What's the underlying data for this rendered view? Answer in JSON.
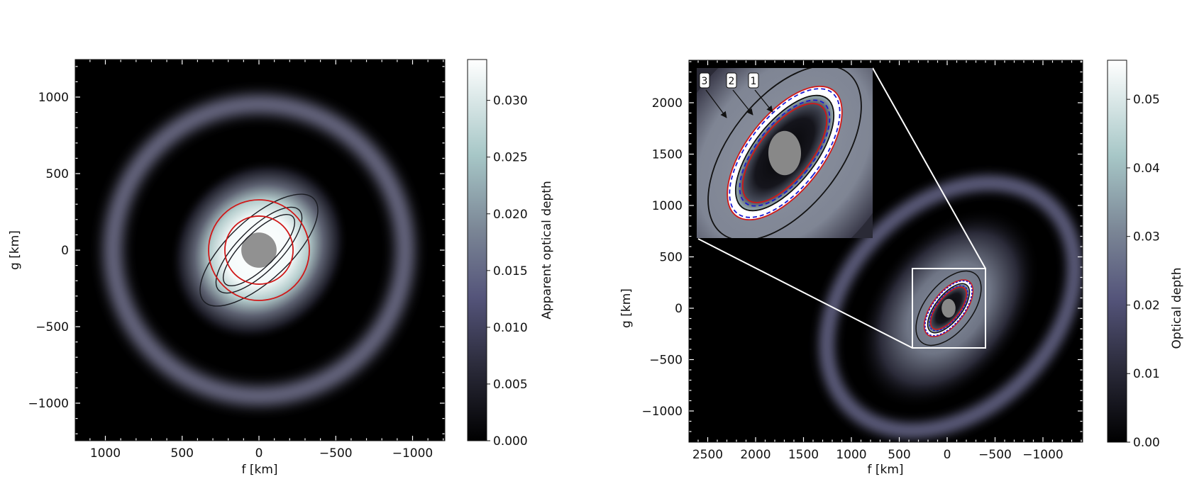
{
  "chart_data": [
    {
      "type": "heatmap",
      "panel": "left",
      "xlabel": "f [km]",
      "ylabel": "g [km]",
      "xlim": [
        1200,
        -1210
      ],
      "ylim": [
        -1245,
        1245
      ],
      "xticks": [
        1000,
        500,
        0,
        -500,
        -1000
      ],
      "xtick_labels": [
        "1000",
        "500",
        "0",
        "−500",
        "−1000"
      ],
      "yticks": [
        1000,
        500,
        0,
        -500,
        -1000
      ],
      "ytick_labels": [
        "1000",
        "500",
        "0",
        "−500",
        "−1000"
      ],
      "colorbar": {
        "label": "Apparent optical depth",
        "range": [
          0,
          0.0336
        ],
        "ticks": [
          0,
          0.005,
          0.01,
          0.015,
          0.02,
          0.025,
          0.03
        ],
        "tick_labels": [
          "0.000",
          "0.005",
          "0.010",
          "0.015",
          "0.020",
          "0.025",
          "0.030"
        ],
        "colormap": "bone"
      },
      "features": {
        "planet_radius_km": 115,
        "outer_ring_radius_km": 950,
        "black_contours_km": [
          {
            "a": 490,
            "b": 200,
            "tilt_deg": 47
          },
          {
            "a": 370,
            "b": 140,
            "tilt_deg": 45
          },
          {
            "a": 310,
            "b": 110,
            "tilt_deg": 45
          }
        ],
        "red_circles_km": [
          328,
          222
        ]
      }
    },
    {
      "type": "heatmap",
      "panel": "right",
      "xlabel": "f [km]",
      "ylabel": "g [km]",
      "xlim": [
        2696,
        -1415
      ],
      "ylim": [
        -1303,
        2414
      ],
      "xticks": [
        2500,
        2000,
        1500,
        1000,
        500,
        0,
        -500,
        -1000
      ],
      "xtick_labels": [
        "2500",
        "2000",
        "1500",
        "1000",
        "500",
        "0",
        "−500",
        "−1000"
      ],
      "yticks": [
        2000,
        1500,
        1000,
        500,
        0,
        -500,
        -1000
      ],
      "ytick_labels": [
        "2000",
        "1500",
        "1000",
        "500",
        "0",
        "−500",
        "−1000"
      ],
      "colorbar": {
        "label": "Optical depth",
        "range": [
          0,
          0.0557
        ],
        "ticks": [
          0,
          0.01,
          0.02,
          0.03,
          0.04,
          0.05
        ],
        "tick_labels": [
          "0.00",
          "0.01",
          "0.02",
          "0.03",
          "0.04",
          "0.05"
        ],
        "colormap": "bone"
      },
      "zoom_box_km": {
        "f": [
          390,
          -380
        ],
        "g": [
          -385,
          385
        ]
      },
      "inset_annotations": [
        "3",
        "2",
        "1"
      ],
      "features": {
        "planet_km": {
          "rx": 70,
          "ry": 95
        },
        "outer_ring_km": {
          "a": 1430,
          "b": 1030,
          "tilt_deg": 45
        },
        "contours_km": [
          {
            "kind": "black",
            "a": 438,
            "b": 237
          },
          {
            "kind": "red",
            "a": 340,
            "b": 163
          },
          {
            "kind": "blue-dashed",
            "a": 329,
            "b": 154
          },
          {
            "kind": "black",
            "a": 296,
            "b": 133
          },
          {
            "kind": "blue-dashed",
            "a": 272,
            "b": 121
          },
          {
            "kind": "red",
            "a": 255,
            "b": 112
          }
        ],
        "contour_tilt_deg": 38
      }
    }
  ],
  "colors": {
    "red_contour": "#d01818",
    "blue_contour": "#1a1ad0",
    "black_contour": "#111111",
    "planet": "#888888",
    "ring": "#6c6c86"
  }
}
